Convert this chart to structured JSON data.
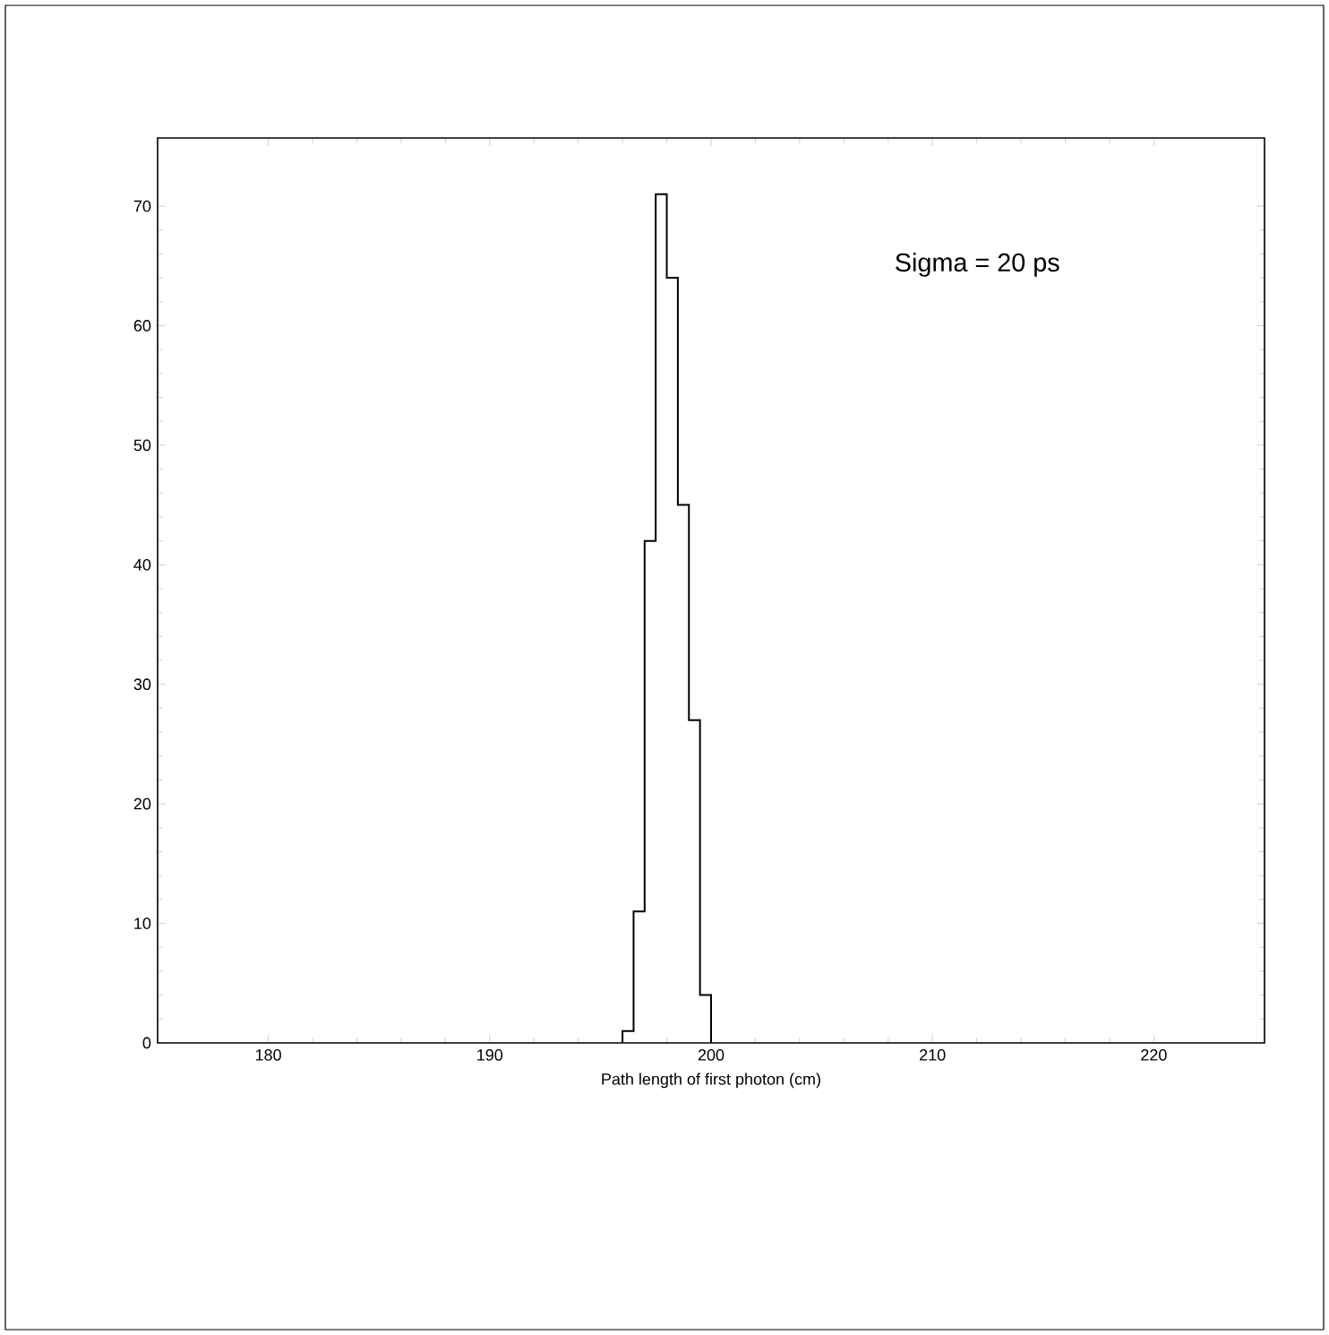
{
  "chart_data": {
    "type": "histogram",
    "xlabel": "Path length of first photon (cm)",
    "bins": [
      196,
      196.5,
      197,
      197.5,
      198,
      198.5,
      199,
      199.5,
      200
    ],
    "values": [
      1,
      11,
      42,
      71,
      64,
      45,
      27,
      4
    ],
    "color": "#000000",
    "annotations": [
      "Sigma = 20 ps"
    ],
    "xlim": [
      175,
      225
    ],
    "ylim": [
      0,
      75.7
    ],
    "xticks": [
      180,
      190,
      200,
      210,
      220
    ],
    "yticks": [
      0,
      10,
      20,
      30,
      40,
      50,
      60,
      70
    ],
    "grid": false
  }
}
